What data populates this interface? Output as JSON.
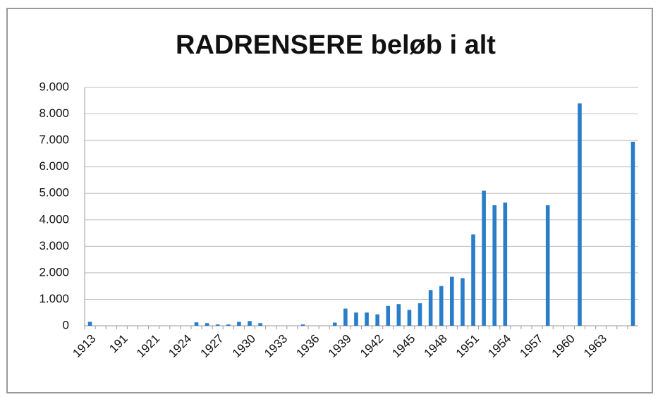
{
  "chart_data": {
    "type": "bar",
    "title": "RADRENSERE beløb i alt",
    "categories": [
      "1913",
      null,
      null,
      "191",
      null,
      null,
      "1921",
      null,
      null,
      "1924",
      null,
      null,
      "1927",
      null,
      null,
      "1930",
      null,
      null,
      "1933",
      null,
      null,
      "1936",
      null,
      null,
      "1939",
      null,
      null,
      "1942",
      null,
      null,
      "1945",
      null,
      null,
      "1948",
      null,
      null,
      "1951",
      null,
      null,
      "1954",
      null,
      null,
      "1957",
      null,
      null,
      "1960",
      null,
      null,
      "1963",
      null,
      null,
      null
    ],
    "values": [
      150,
      0,
      0,
      0,
      0,
      0,
      0,
      0,
      0,
      0,
      130,
      100,
      50,
      50,
      150,
      180,
      100,
      0,
      0,
      0,
      50,
      0,
      0,
      120,
      650,
      500,
      500,
      430,
      750,
      820,
      600,
      850,
      1350,
      1500,
      1850,
      1800,
      3450,
      5100,
      4550,
      4650,
      0,
      0,
      0,
      4550,
      0,
      0,
      8400,
      0,
      0,
      0,
      0,
      6950
    ],
    "color": "#2a7dc9",
    "ylim": [
      0,
      9000
    ],
    "yticks": [
      0,
      {
        "value": 1000,
        "label": "1.000"
      },
      {
        "value": 2000,
        "label": "2.000"
      },
      {
        "value": 3000,
        "label": "3.000"
      },
      {
        "value": 4000,
        "label": "4.000"
      },
      {
        "value": 5000,
        "label": "5.000"
      },
      {
        "value": 6000,
        "label": "6.000"
      },
      {
        "value": 7000,
        "label": "7.000"
      },
      {
        "value": 8000,
        "label": "8.000"
      },
      {
        "value": 9000,
        "label": "9.000"
      }
    ],
    "grid": true
  }
}
